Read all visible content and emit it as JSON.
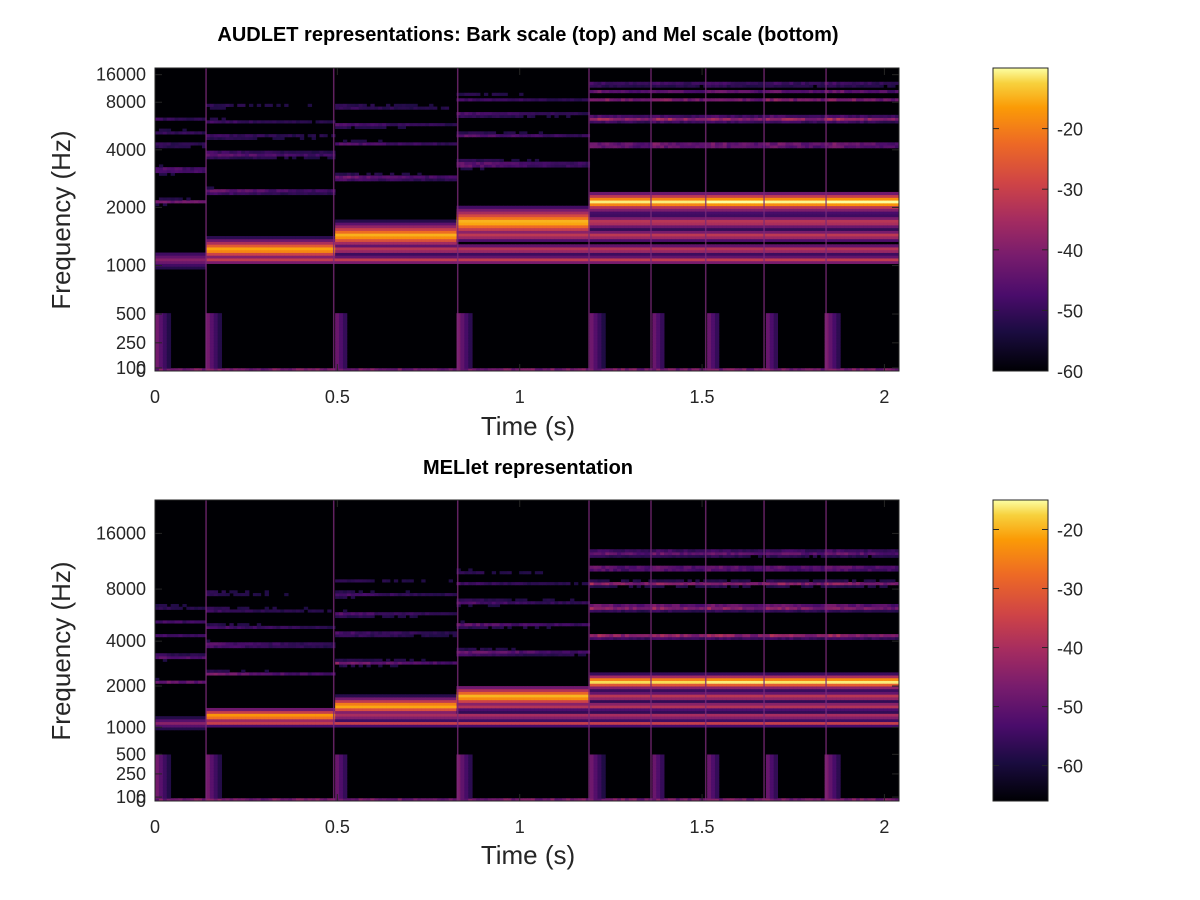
{
  "chart_data": [
    {
      "type": "heatmap",
      "title": "AUDLET representations: Bark scale (top) and Mel scale (bottom)",
      "xlabel": "Time (s)",
      "ylabel": "Frequency (Hz)",
      "xlim": [
        0,
        2.04
      ],
      "xticks": [
        0,
        0.5,
        1,
        1.5,
        2
      ],
      "xtick_labels": [
        "0",
        "0.5",
        "1",
        "1.5",
        "2"
      ],
      "yscale": "bark",
      "ylim": [
        0,
        22050
      ],
      "yticks": [
        0,
        100,
        250,
        500,
        1000,
        2000,
        4000,
        8000,
        16000
      ],
      "ytick_labels": [
        "0",
        "100",
        "250",
        "500",
        "1000",
        "2000",
        "4000",
        "8000",
        "16000"
      ],
      "colormap": "inferno",
      "colorbar": {
        "range": [
          -60,
          -10
        ],
        "ticks": [
          -20,
          -30,
          -40,
          -50,
          -60
        ],
        "tick_labels": [
          "-20",
          "-30",
          "-40",
          "-50",
          "-60"
        ]
      },
      "note_onsets": [
        0.14,
        0.49,
        0.83,
        1.19,
        1.36,
        1.51,
        1.67,
        1.84
      ]
    },
    {
      "type": "heatmap",
      "title": "MELlet representation",
      "xlabel": "Time (s)",
      "ylabel": "Frequency (Hz)",
      "xlim": [
        0,
        2.04
      ],
      "xticks": [
        0,
        0.5,
        1,
        1.5,
        2
      ],
      "xtick_labels": [
        "0",
        "0.5",
        "1",
        "1.5",
        "2"
      ],
      "yscale": "mel",
      "ylim": [
        0,
        22050
      ],
      "yticks": [
        0,
        100,
        250,
        500,
        1000,
        2000,
        4000,
        8000,
        16000
      ],
      "ytick_labels": [
        "0",
        "100",
        "250",
        "500",
        "1000",
        "2000",
        "4000",
        "8000",
        "16000"
      ],
      "colormap": "inferno",
      "colorbar": {
        "range": [
          -66,
          -15
        ],
        "ticks": [
          -20,
          -30,
          -40,
          -50,
          -60
        ],
        "tick_labels": [
          "-20",
          "-30",
          "-40",
          "-50",
          "-60"
        ]
      },
      "note_onsets": [
        0.14,
        0.49,
        0.83,
        1.19,
        1.36,
        1.51,
        1.67,
        1.84
      ]
    }
  ]
}
